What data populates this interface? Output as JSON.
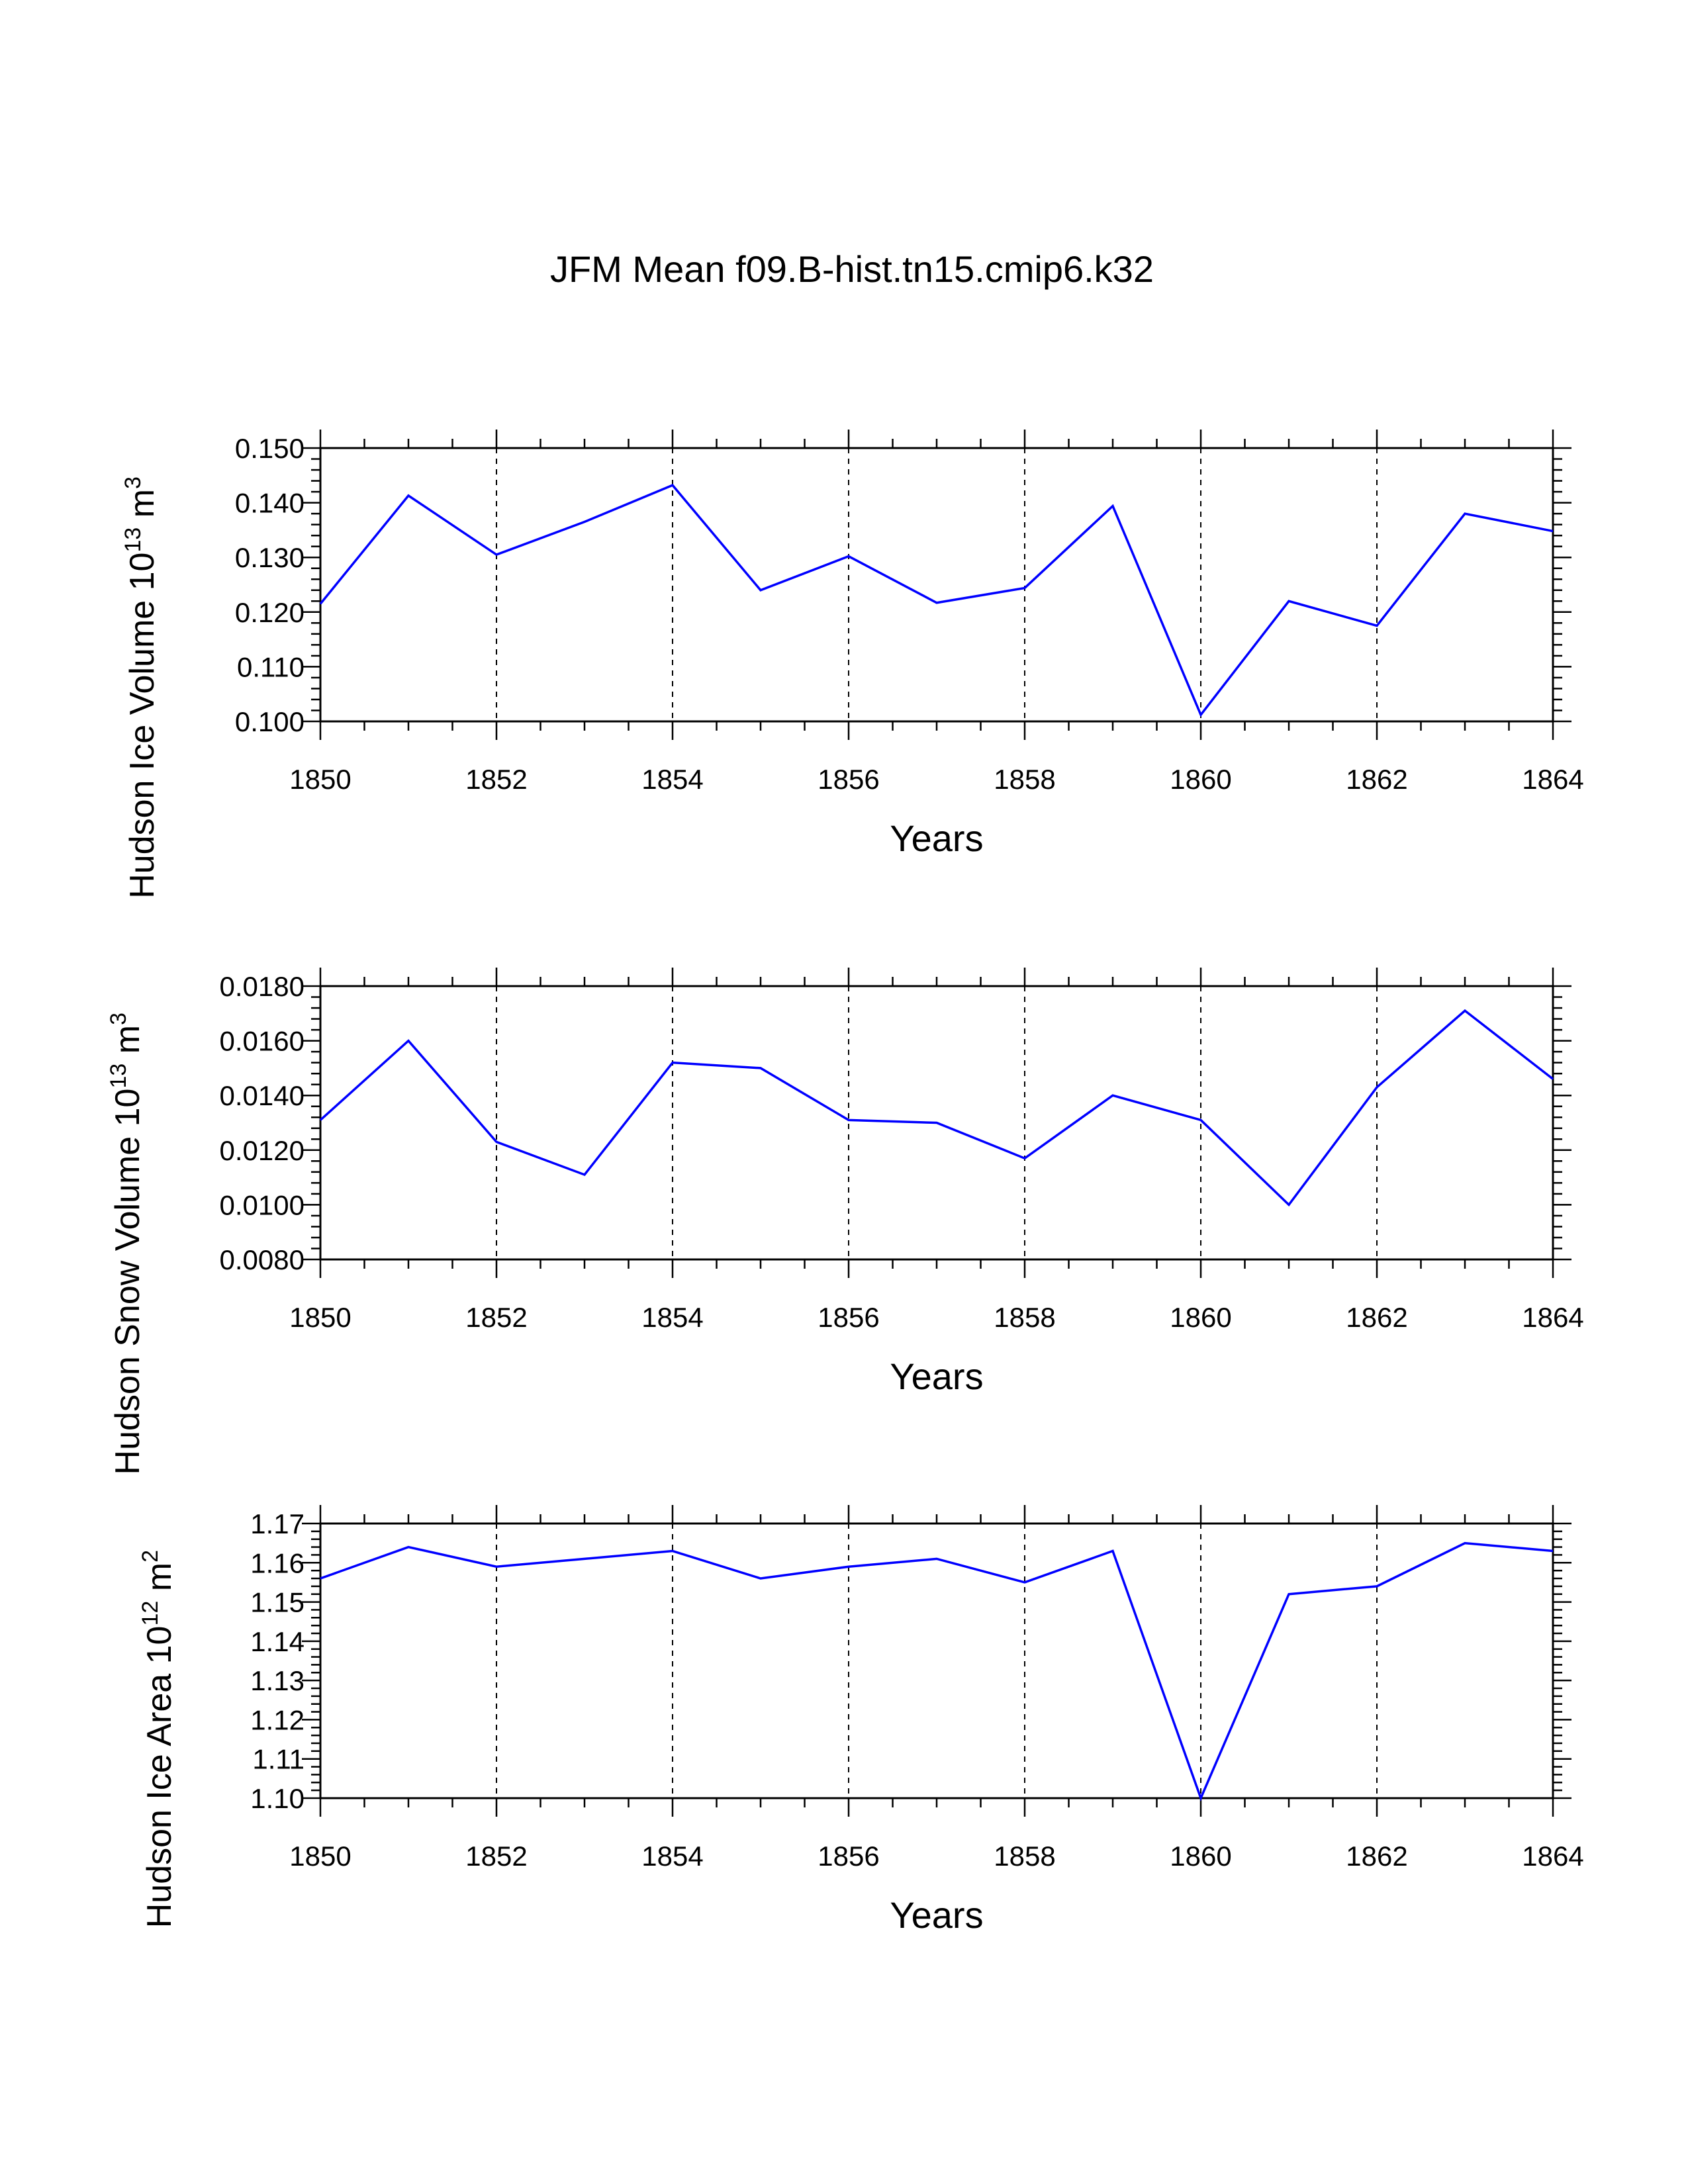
{
  "chart_data": [
    {
      "type": "line",
      "title": "JFM Mean f09.B-hist.tn15.cmip6.k32",
      "ylabel_main": "Hudson Ice Volume 10",
      "ylabel_exp": "13",
      "ylabel_unit": "m",
      "ylabel_unit_exp": "3",
      "xlabel": "Years",
      "x": [
        1850,
        1851,
        1852,
        1853,
        1854,
        1855,
        1856,
        1857,
        1858,
        1859,
        1860,
        1861,
        1862,
        1863,
        1864
      ],
      "series": [
        {
          "name": "Hudson Ice Volume",
          "color": "#0000ff",
          "values": [
            0.1215,
            0.1413,
            0.1305,
            0.1365,
            0.1432,
            0.124,
            0.1302,
            0.1217,
            0.1244,
            0.1394,
            0.1012,
            0.122,
            0.1175,
            0.138,
            0.1348
          ]
        }
      ],
      "xlim": [
        1850,
        1864
      ],
      "ylim": [
        0.1,
        0.15
      ],
      "xticks": [
        "1850",
        "1852",
        "1854",
        "1856",
        "1858",
        "1860",
        "1862",
        "1864"
      ],
      "yticks": [
        "0.100",
        "0.110",
        "0.120",
        "0.130",
        "0.140",
        "0.150"
      ],
      "grid_x": true
    },
    {
      "type": "line",
      "title": "",
      "ylabel_main": "Hudson Snow Volume 10",
      "ylabel_exp": "13",
      "ylabel_unit": "m",
      "ylabel_unit_exp": "3",
      "xlabel": "Years",
      "x": [
        1850,
        1851,
        1852,
        1853,
        1854,
        1855,
        1856,
        1857,
        1858,
        1859,
        1860,
        1861,
        1862,
        1863,
        1864
      ],
      "series": [
        {
          "name": "Hudson Snow Volume",
          "color": "#0000ff",
          "values": [
            0.0131,
            0.016,
            0.0123,
            0.0111,
            0.0152,
            0.015,
            0.0131,
            0.013,
            0.0117,
            0.014,
            0.0131,
            0.01,
            0.0143,
            0.0171,
            0.0146
          ]
        }
      ],
      "xlim": [
        1850,
        1864
      ],
      "ylim": [
        0.008,
        0.018
      ],
      "xticks": [
        "1850",
        "1852",
        "1854",
        "1856",
        "1858",
        "1860",
        "1862",
        "1864"
      ],
      "yticks": [
        "0.0080",
        "0.0100",
        "0.0120",
        "0.0140",
        "0.0160",
        "0.0180"
      ],
      "grid_x": true
    },
    {
      "type": "line",
      "title": "",
      "ylabel_main": "Hudson Ice Area 10",
      "ylabel_exp": "12",
      "ylabel_unit": "m",
      "ylabel_unit_exp": "2",
      "xlabel": "Years",
      "x": [
        1850,
        1851,
        1852,
        1853,
        1854,
        1855,
        1856,
        1857,
        1858,
        1859,
        1860,
        1861,
        1862,
        1863,
        1864
      ],
      "series": [
        {
          "name": "Hudson Ice Area",
          "color": "#0000ff",
          "values": [
            1.156,
            1.164,
            1.159,
            1.161,
            1.163,
            1.156,
            1.159,
            1.161,
            1.155,
            1.163,
            1.1,
            1.152,
            1.154,
            1.165,
            1.163
          ]
        }
      ],
      "xlim": [
        1850,
        1864
      ],
      "ylim": [
        1.1,
        1.17
      ],
      "xticks": [
        "1850",
        "1852",
        "1854",
        "1856",
        "1858",
        "1860",
        "1862",
        "1864"
      ],
      "yticks": [
        "1.10",
        "1.11",
        "1.12",
        "1.13",
        "1.14",
        "1.15",
        "1.16",
        "1.17"
      ],
      "grid_x": true
    }
  ]
}
